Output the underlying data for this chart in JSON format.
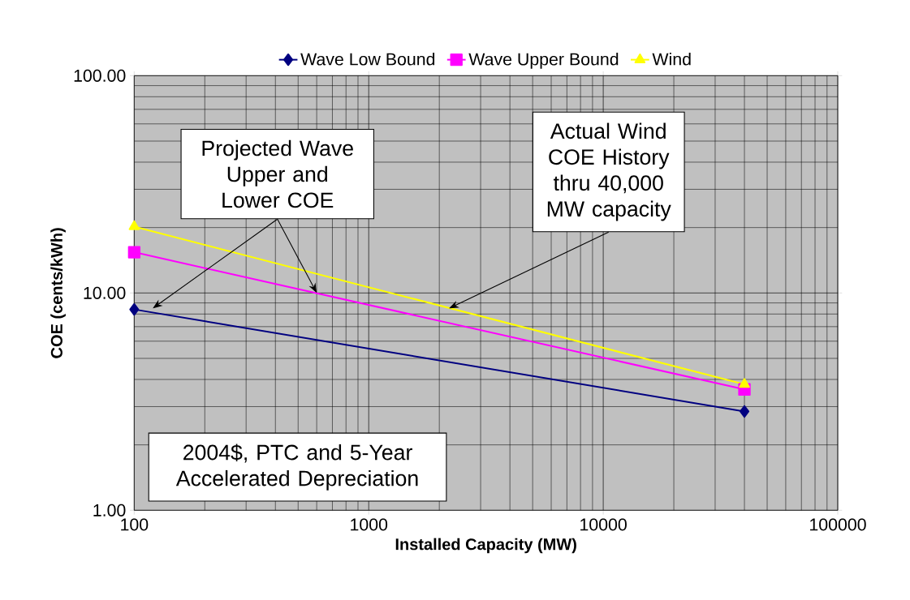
{
  "chart_data": {
    "type": "line",
    "xlabel": "Installed Capacity (MW)",
    "ylabel": "COE (cents/kWh)",
    "x": [
      100,
      40000
    ],
    "series": [
      {
        "name": "Wave Low Bound",
        "color": "#000080",
        "marker": "diamond",
        "values": [
          8.4,
          2.85
        ]
      },
      {
        "name": "Wave Upper Bound",
        "color": "#ff00ff",
        "marker": "square",
        "values": [
          15.4,
          3.6
        ]
      },
      {
        "name": "Wind",
        "color": "#ffff00",
        "marker": "triangle",
        "values": [
          20.2,
          3.8
        ]
      }
    ],
    "log": "xy",
    "xlim": [
      100,
      100000
    ],
    "ylim": [
      1,
      100
    ],
    "xticks": [
      100,
      1000,
      10000,
      100000
    ],
    "yticks": [
      {
        "value": 1,
        "label": "1.00"
      },
      {
        "value": 10,
        "label": "10.00"
      },
      {
        "value": 100,
        "label": "100.00"
      }
    ],
    "grid": true,
    "legend": "top",
    "annotations": [
      {
        "text": "Projected Wave Upper and Lower COE",
        "x": 600,
        "y": 10
      },
      {
        "text": "Actual Wind COE History thru 40,000 MW capacity",
        "x": 2200,
        "y": 8.5
      },
      "2004$, PTC and 5-Year Accelerated Depreciation"
    ]
  }
}
